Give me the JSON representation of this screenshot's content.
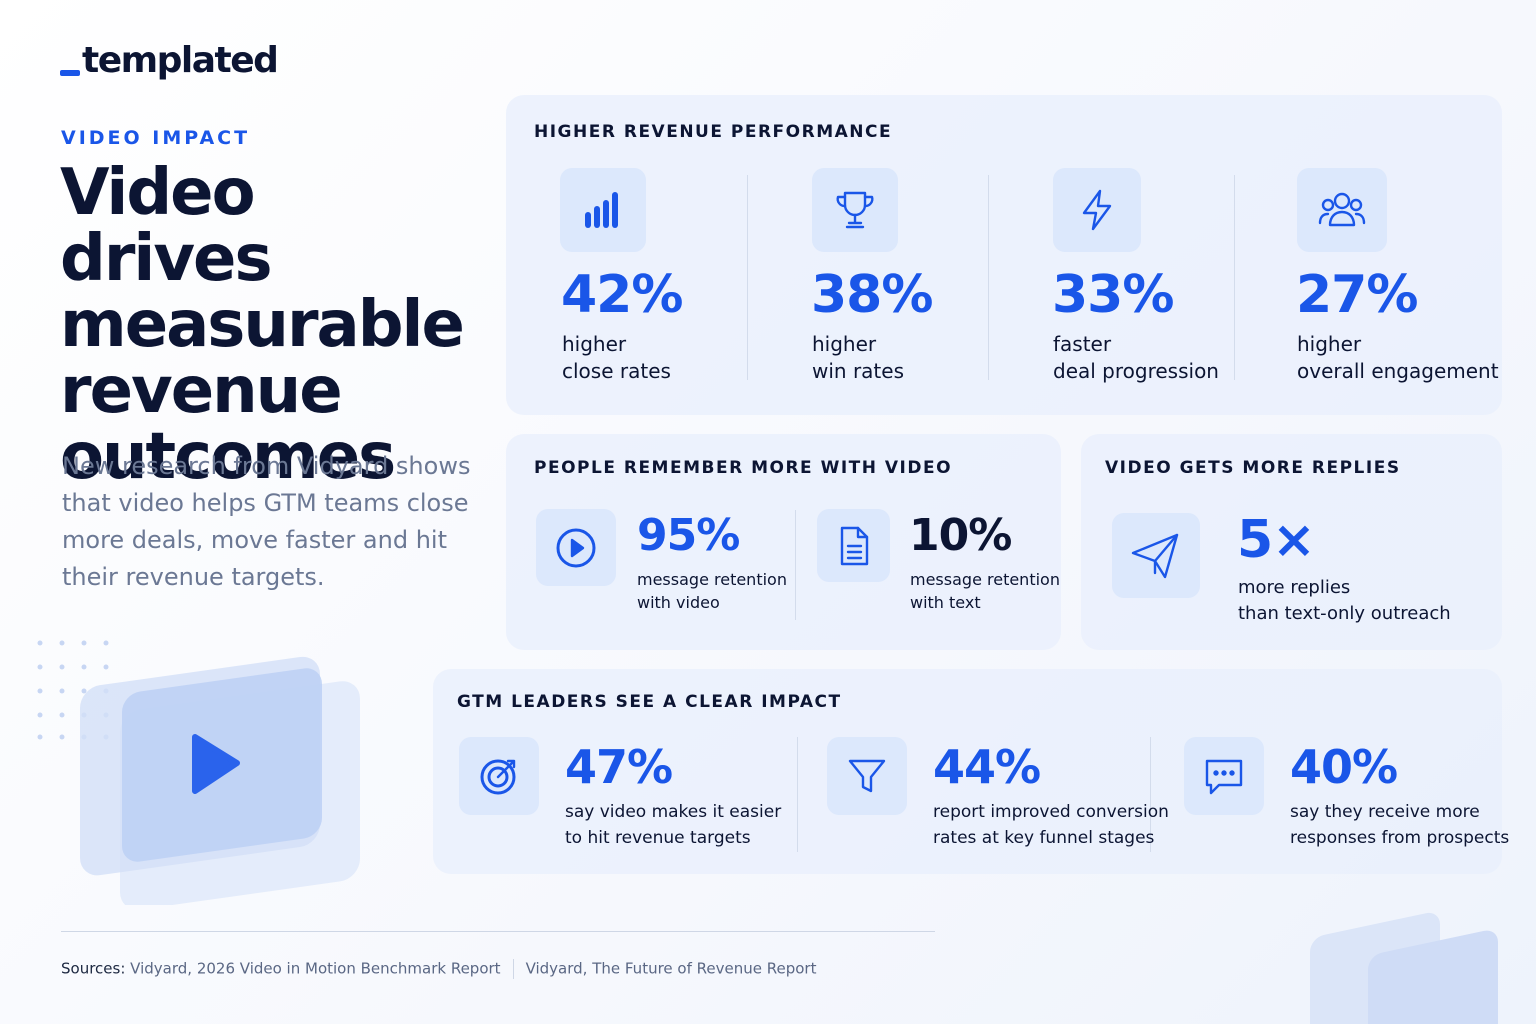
{
  "logo": {
    "text": "templated"
  },
  "hero": {
    "eyebrow": "VIDEO IMPACT",
    "title": "Video drives measurable revenue outcomes",
    "description": "New research from Vidyard shows that video helps GTM teams close more deals, move faster and hit their revenue targets."
  },
  "revenue_panel": {
    "title": "HIGHER REVENUE PERFORMANCE",
    "stats": [
      {
        "value": "42%",
        "label": [
          "higher",
          "close rates"
        ]
      },
      {
        "value": "38%",
        "label": [
          "higher",
          "win rates"
        ]
      },
      {
        "value": "33%",
        "label": [
          "faster",
          "deal progression"
        ]
      },
      {
        "value": "27%",
        "label": [
          "higher",
          "overall engagement"
        ]
      }
    ]
  },
  "memory_panel": {
    "title": "PEOPLE REMEMBER MORE WITH VIDEO",
    "stats": [
      {
        "value": "95%",
        "label": [
          "message retention",
          "with video"
        ]
      },
      {
        "value": "10%",
        "label": [
          "message retention",
          "with text"
        ]
      }
    ]
  },
  "replies_panel": {
    "title": "VIDEO GETS MORE REPLIES",
    "stat": {
      "value": "5×",
      "label": [
        "more replies",
        "than text-only outreach"
      ]
    }
  },
  "leaders_panel": {
    "title": "GTM LEADERS SEE A CLEAR IMPACT",
    "stats": [
      {
        "value": "47%",
        "label": [
          "say video makes it easier",
          "to hit revenue targets"
        ]
      },
      {
        "value": "44%",
        "label": [
          "report improved conversion",
          "rates at key funnel stages"
        ]
      },
      {
        "value": "40%",
        "label": [
          "say they receive more",
          "responses from prospects"
        ]
      }
    ]
  },
  "sources": {
    "label": "Sources:",
    "items": [
      "Vidyard, 2026 Video in Motion Benchmark Report",
      "Vidyard, The Future of Revenue Report"
    ]
  }
}
